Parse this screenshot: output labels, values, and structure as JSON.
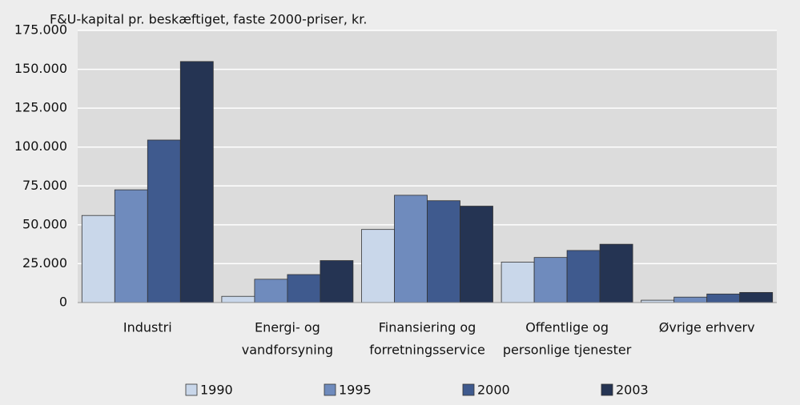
{
  "chart_data": {
    "type": "bar",
    "title": "F&U-kapital pr. beskæftiget, faste 2000-priser, kr.",
    "categories": [
      [
        "Industri"
      ],
      [
        "Energi- og",
        "vandforsyning"
      ],
      [
        "Finansiering og",
        "forretningsservice"
      ],
      [
        "Offentlige og",
        "personlige tjenester"
      ],
      [
        "Øvrige erhverv"
      ]
    ],
    "series": [
      {
        "name": "1990",
        "color": "#c9d7ea",
        "values": [
          56000,
          4000,
          47000,
          26000,
          1500
        ]
      },
      {
        "name": "1995",
        "color": "#6f8bbd",
        "values": [
          72500,
          15000,
          69000,
          29000,
          3500
        ]
      },
      {
        "name": "2000",
        "color": "#3f5a8e",
        "values": [
          104500,
          18000,
          65500,
          33500,
          5500
        ]
      },
      {
        "name": "2003",
        "color": "#253453",
        "values": [
          155000,
          27000,
          62000,
          37500,
          6500
        ]
      }
    ],
    "ylim": [
      0,
      175000
    ],
    "yticks": [
      0,
      {
        "value": 25000,
        "label": "25.000"
      },
      {
        "value": 50000,
        "label": "50.000"
      },
      {
        "value": 75000,
        "label": "75.000"
      },
      {
        "value": 100000,
        "label": "100.000"
      },
      {
        "value": 125000,
        "label": "125.000"
      },
      {
        "value": 150000,
        "label": "150.000"
      },
      {
        "value": 175000,
        "label": "175.000"
      }
    ],
    "grid": true
  }
}
